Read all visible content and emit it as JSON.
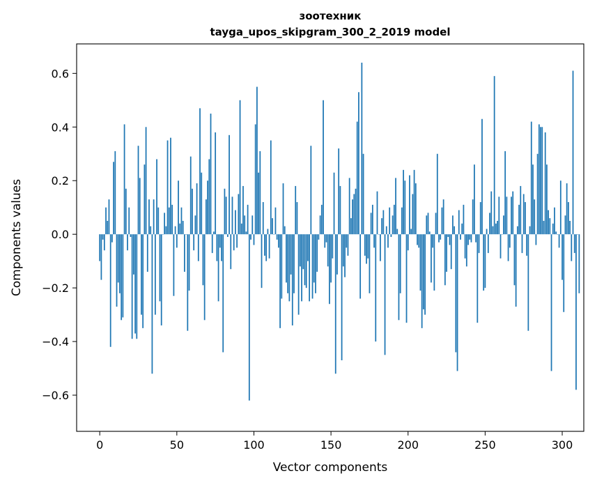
{
  "chart_data": {
    "type": "bar",
    "title": "зоотехник",
    "subtitle": "tayga_upos_skipgram_300_2_2019 model",
    "xlabel": "Vector components",
    "ylabel": "Components values",
    "xlim": [
      -15,
      314
    ],
    "ylim": [
      -0.735,
      0.71
    ],
    "xticks": [
      0,
      50,
      100,
      150,
      200,
      250,
      300
    ],
    "xtick_labels": [
      "0",
      "50",
      "100",
      "150",
      "200",
      "250",
      "300"
    ],
    "yticks": [
      -0.6,
      -0.4,
      -0.2,
      0.0,
      0.2,
      0.4,
      0.6
    ],
    "ytick_labels": [
      "−0.6",
      "−0.4",
      "−0.2",
      "0.0",
      "0.2",
      "0.4",
      "0.6"
    ],
    "grid": false,
    "legend": "none",
    "bar_color": "#1f77b4",
    "x_start": 0,
    "values": [
      -0.1,
      -0.17,
      -0.02,
      -0.06,
      0.1,
      0.05,
      0.13,
      -0.42,
      -0.03,
      0.27,
      0.31,
      -0.27,
      -0.18,
      -0.22,
      -0.32,
      -0.31,
      0.41,
      0.17,
      -0.06,
      0.1,
      -0.01,
      -0.39,
      -0.15,
      -0.37,
      -0.39,
      0.33,
      0.21,
      -0.3,
      -0.35,
      0.26,
      0.4,
      -0.14,
      0.13,
      0.03,
      -0.52,
      0.13,
      -0.3,
      0.28,
      0.1,
      -0.25,
      -0.34,
      0.0,
      0.08,
      0.03,
      0.35,
      0.1,
      0.36,
      0.11,
      -0.23,
      0.03,
      -0.05,
      0.2,
      0.04,
      0.1,
      0.05,
      -0.14,
      0.0,
      -0.36,
      -0.21,
      0.29,
      0.17,
      -0.06,
      0.07,
      0.19,
      -0.1,
      0.47,
      0.23,
      -0.19,
      -0.32,
      0.13,
      0.2,
      0.28,
      0.45,
      -0.07,
      0.01,
      0.38,
      -0.1,
      -0.25,
      -0.05,
      -0.1,
      -0.44,
      0.17,
      0.14,
      -0.01,
      0.37,
      -0.13,
      0.14,
      -0.06,
      0.09,
      -0.05,
      0.15,
      0.5,
      0.04,
      0.18,
      0.07,
      0.01,
      0.11,
      -0.62,
      -0.02,
      0.07,
      -0.04,
      0.41,
      0.55,
      0.23,
      0.31,
      -0.2,
      0.12,
      -0.08,
      -0.1,
      0.02,
      -0.09,
      0.35,
      0.06,
      0.0,
      0.1,
      -0.02,
      -0.05,
      -0.35,
      -0.24,
      0.19,
      0.03,
      -0.18,
      -0.22,
      -0.25,
      -0.15,
      -0.34,
      -0.22,
      0.18,
      0.12,
      -0.3,
      -0.12,
      -0.25,
      -0.13,
      -0.19,
      -0.2,
      -0.1,
      -0.25,
      0.33,
      -0.24,
      -0.18,
      -0.22,
      -0.14,
      -0.02,
      0.07,
      0.11,
      0.5,
      -0.05,
      -0.03,
      -0.12,
      -0.26,
      -0.18,
      -0.09,
      0.23,
      -0.52,
      -0.15,
      0.32,
      0.18,
      -0.47,
      -0.12,
      -0.16,
      -0.05,
      -0.08,
      0.21,
      0.06,
      0.13,
      0.15,
      0.17,
      0.42,
      0.53,
      -0.24,
      0.64,
      0.3,
      -0.08,
      -0.11,
      -0.09,
      -0.22,
      0.08,
      0.11,
      -0.05,
      -0.4,
      0.16,
      0.0,
      -0.1,
      0.06,
      0.09,
      -0.45,
      0.03,
      -0.05,
      0.1,
      -0.01,
      0.07,
      0.11,
      0.21,
      0.02,
      -0.32,
      -0.22,
      0.1,
      0.24,
      0.2,
      -0.33,
      -0.06,
      0.22,
      0.02,
      0.15,
      0.24,
      0.19,
      -0.04,
      -0.05,
      -0.21,
      -0.35,
      -0.28,
      -0.3,
      0.07,
      0.08,
      0.01,
      -0.18,
      -0.05,
      -0.21,
      0.08,
      0.3,
      -0.03,
      -0.02,
      0.1,
      0.13,
      -0.19,
      -0.14,
      -0.01,
      -0.04,
      -0.13,
      0.07,
      0.03,
      -0.44,
      -0.51,
      0.09,
      -0.02,
      0.04,
      0.11,
      -0.09,
      -0.12,
      -0.04,
      -0.02,
      -0.03,
      0.13,
      0.26,
      -0.03,
      -0.33,
      -0.07,
      0.12,
      0.43,
      -0.21,
      -0.2,
      0.02,
      -0.07,
      0.08,
      0.16,
      0.03,
      0.59,
      0.04,
      0.05,
      0.14,
      -0.09,
      0.0,
      0.07,
      0.31,
      0.14,
      -0.1,
      -0.05,
      0.14,
      0.16,
      -0.19,
      -0.27,
      0.03,
      0.11,
      0.18,
      -0.07,
      0.15,
      0.12,
      -0.08,
      -0.36,
      0.03,
      0.42,
      0.26,
      0.13,
      -0.04,
      0.3,
      0.41,
      0.4,
      0.4,
      0.05,
      0.38,
      0.26,
      0.09,
      0.06,
      -0.51,
      0.04,
      0.1,
      0.01,
      0.0,
      -0.05,
      0.2,
      -0.17,
      -0.29,
      0.07,
      0.19,
      0.12,
      0.05,
      -0.1,
      0.61,
      -0.07,
      -0.58,
      0.0,
      -0.22
    ]
  }
}
